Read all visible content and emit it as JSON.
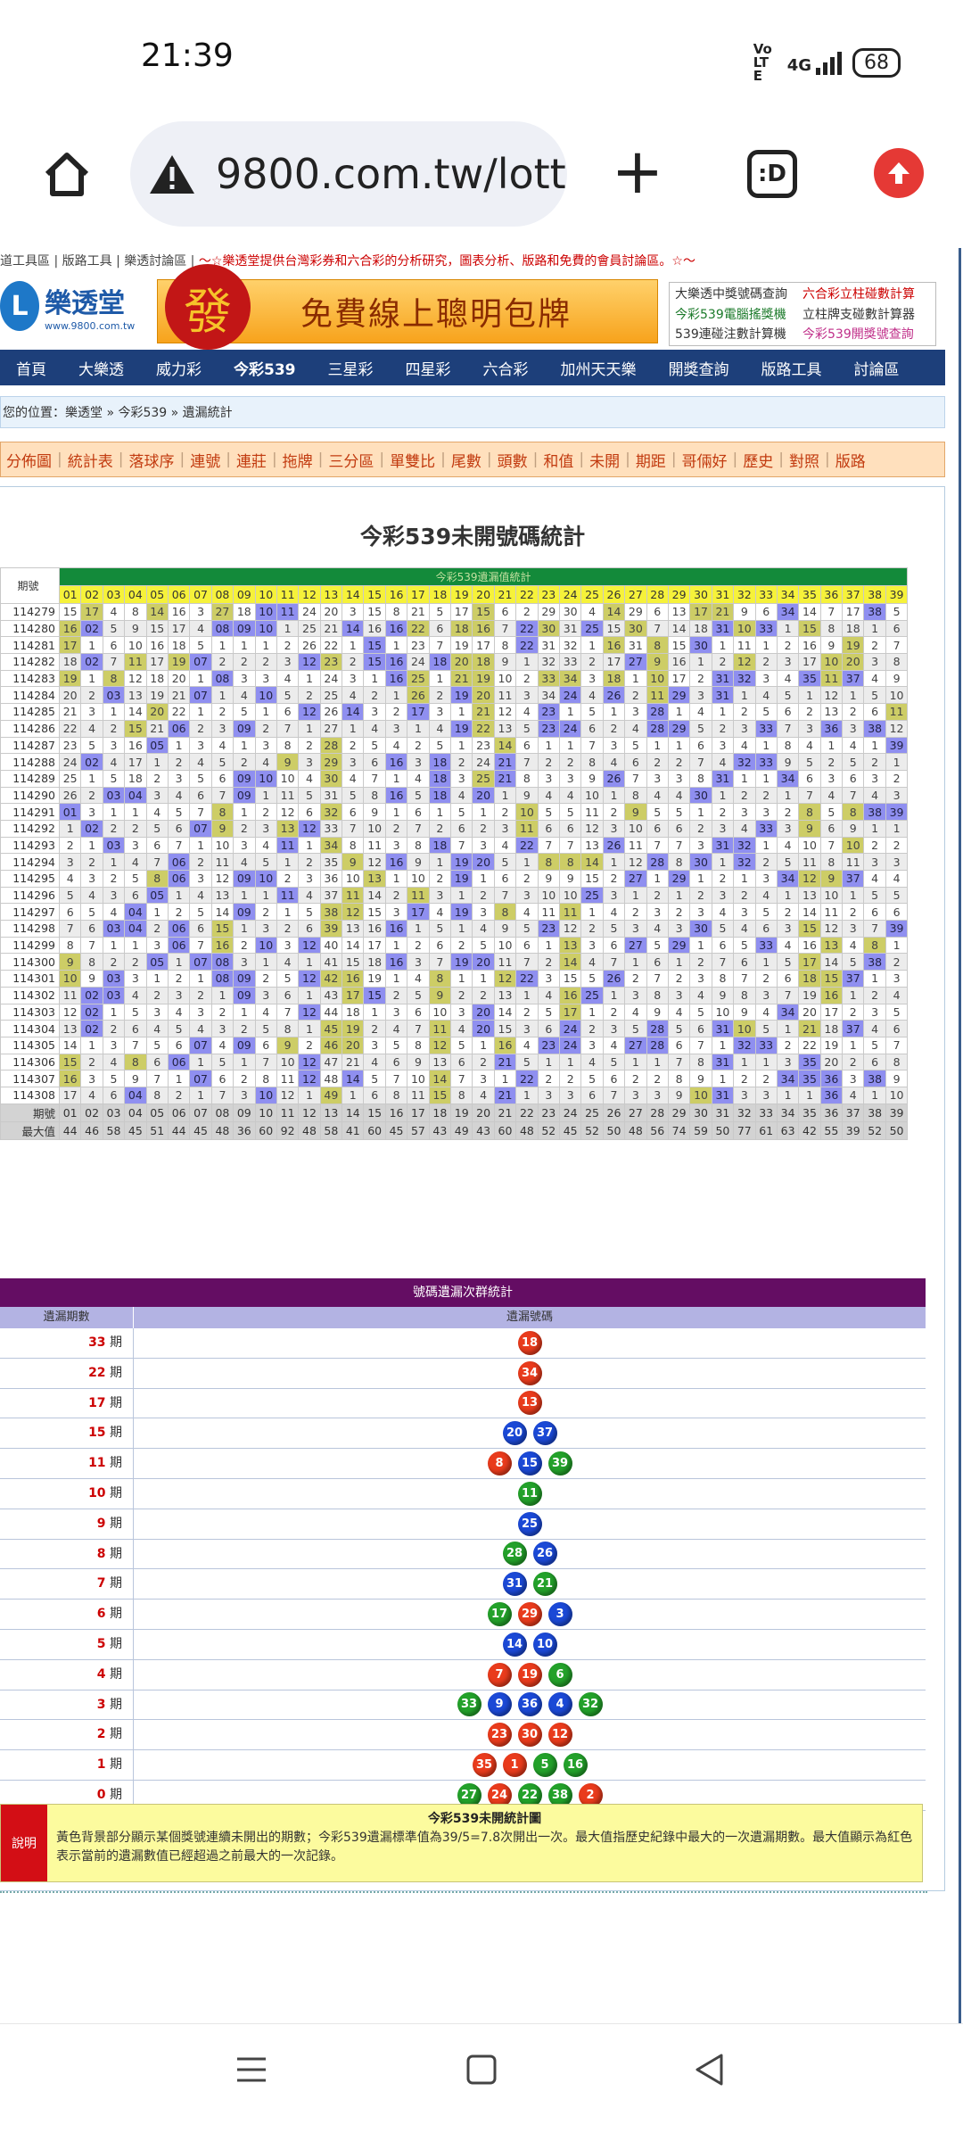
{
  "status_bar": {
    "time": "21:39",
    "volte": "VoLTE",
    "network": "4G",
    "battery": "68"
  },
  "browser": {
    "url": "9800.com.tw/lott",
    "tabs_label": ":D"
  },
  "top_strip": {
    "left": "道工具區 | 版路工具 | 樂透討論區 | ",
    "promo": "～☆樂透堂提供台灣彩券和六合彩的分析研究，圖表分析、版路和免費的會員討論區。☆～"
  },
  "logo": {
    "name": "樂透堂",
    "url": "www.9800.com.tw",
    "mark": "L"
  },
  "banner": {
    "char": "發",
    "text": "免費線上聰明包牌"
  },
  "side_links": [
    {
      "label": "大樂透中獎號碼查詢",
      "color": "#333"
    },
    {
      "label": "六合彩立柱碰數計算",
      "color": "#c00"
    },
    {
      "label": "今彩539電腦搖獎機",
      "color": "#1b7a2a"
    },
    {
      "label": "立柱牌支碰數計算器",
      "color": "#333"
    },
    {
      "label": "539連碰注數計算機",
      "color": "#333"
    },
    {
      "label": "今彩539開獎號查詢",
      "color": "#c0308a"
    }
  ],
  "nav": [
    "首頁",
    "大樂透",
    "威力彩",
    "今彩539",
    "三星彩",
    "四星彩",
    "六合彩",
    "加州天天樂",
    "開獎查詢",
    "版路工具",
    "討論區"
  ],
  "breadcrumb": "您的位置：樂透堂 » 今彩539 » 遺漏統計",
  "tabs": [
    "分佈圖",
    "統計表",
    "落球序",
    "連號",
    "連莊",
    "拖牌",
    "三分區",
    "單雙比",
    "尾數",
    "頭數",
    "和值",
    "未開",
    "期距",
    "哥倆好",
    "歷史",
    "對照",
    "版路"
  ],
  "page_title": "今彩539未開號碼統計",
  "table": {
    "top_label": "今彩539遺漏值統計",
    "period_label": "期號",
    "max_label": "最大值",
    "numbers": [
      "01",
      "02",
      "03",
      "04",
      "05",
      "06",
      "07",
      "08",
      "09",
      "10",
      "11",
      "12",
      "13",
      "14",
      "15",
      "16",
      "17",
      "18",
      "19",
      "20",
      "21",
      "22",
      "23",
      "24",
      "25",
      "26",
      "27",
      "28",
      "29",
      "30",
      "31",
      "32",
      "33",
      "34",
      "35",
      "36",
      "37",
      "38",
      "39"
    ],
    "periods": [
      "114279",
      "114280",
      "114281",
      "114282",
      "114283",
      "114284",
      "114285",
      "114286",
      "114287",
      "114288",
      "114289",
      "114290",
      "114291",
      "114292",
      "114293",
      "114294",
      "114295",
      "114296",
      "114297",
      "114298",
      "114299",
      "114300",
      "114301",
      "114302",
      "114303",
      "114304",
      "114305",
      "114306",
      "114307",
      "114308"
    ],
    "max_values": [
      "44",
      "46",
      "58",
      "45",
      "51",
      "44",
      "45",
      "48",
      "36",
      "60",
      "92",
      "48",
      "58",
      "41",
      "60",
      "45",
      "57",
      "43",
      "49",
      "43",
      "60",
      "48",
      "52",
      "45",
      "52",
      "50",
      "48",
      "56",
      "74",
      "59",
      "50",
      "77",
      "61",
      "63",
      "42",
      "55",
      "39",
      "52",
      "50"
    ]
  },
  "groups": {
    "title": "號碼遺漏次群統計",
    "col_periods": "遺漏期數",
    "col_numbers": "遺漏號碼",
    "unit": "期",
    "rows": [
      {
        "p": "33",
        "balls": [
          [
            "18",
            "r"
          ]
        ]
      },
      {
        "p": "22",
        "balls": [
          [
            "34",
            "r"
          ]
        ]
      },
      {
        "p": "17",
        "balls": [
          [
            "13",
            "r"
          ]
        ]
      },
      {
        "p": "15",
        "balls": [
          [
            "20",
            "bl"
          ],
          [
            "37",
            "bl"
          ]
        ]
      },
      {
        "p": "11",
        "balls": [
          [
            "8",
            "r"
          ],
          [
            "15",
            "bl"
          ],
          [
            "39",
            "g"
          ]
        ]
      },
      {
        "p": "10",
        "balls": [
          [
            "11",
            "g"
          ]
        ]
      },
      {
        "p": "9",
        "balls": [
          [
            "25",
            "bl"
          ]
        ]
      },
      {
        "p": "8",
        "balls": [
          [
            "28",
            "g"
          ],
          [
            "26",
            "bl"
          ]
        ]
      },
      {
        "p": "7",
        "balls": [
          [
            "31",
            "bl"
          ],
          [
            "21",
            "g"
          ]
        ]
      },
      {
        "p": "6",
        "balls": [
          [
            "17",
            "g"
          ],
          [
            "29",
            "r"
          ],
          [
            "3",
            "bl"
          ]
        ]
      },
      {
        "p": "5",
        "balls": [
          [
            "14",
            "bl"
          ],
          [
            "10",
            "bl"
          ]
        ]
      },
      {
        "p": "4",
        "balls": [
          [
            "7",
            "r"
          ],
          [
            "19",
            "r"
          ],
          [
            "6",
            "g"
          ]
        ]
      },
      {
        "p": "3",
        "balls": [
          [
            "33",
            "g"
          ],
          [
            "9",
            "bl"
          ],
          [
            "36",
            "bl"
          ],
          [
            "4",
            "bl"
          ],
          [
            "32",
            "g"
          ]
        ]
      },
      {
        "p": "2",
        "balls": [
          [
            "23",
            "r"
          ],
          [
            "30",
            "r"
          ],
          [
            "12",
            "r"
          ]
        ]
      },
      {
        "p": "1",
        "balls": [
          [
            "35",
            "r"
          ],
          [
            "1",
            "r"
          ],
          [
            "5",
            "g"
          ],
          [
            "16",
            "g"
          ]
        ]
      },
      {
        "p": "0",
        "balls": [
          [
            "27",
            "g"
          ],
          [
            "24",
            "r"
          ],
          [
            "22",
            "g"
          ],
          [
            "38",
            "g"
          ],
          [
            "2",
            "r"
          ]
        ]
      }
    ]
  },
  "note": {
    "label": "說明",
    "title": "今彩539未開統計圖",
    "text": "黃色背景部分顯示某個獎號連續未開出的期數；今彩539遺漏標準值為39/5=7.8次開出一次。最大值指歷史紀錄中最大的一次遺漏期數。最大值顯示為紅色表示當前的遺漏數值已經超過之前最大的一次記錄。"
  }
}
